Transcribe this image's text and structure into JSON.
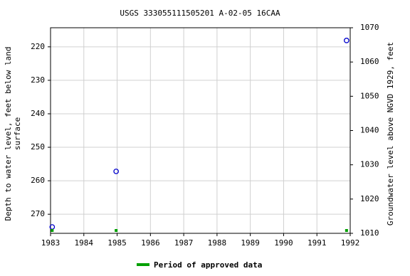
{
  "chart_data": {
    "type": "scatter",
    "title": "USGS 333055111505201 A-02-05 16CAA",
    "ylabel": [
      "Depth to water level, feet below land",
      "surface"
    ],
    "y2label": "Groundwater level above NGVD 1929, feet",
    "xlim": [
      1983,
      1992
    ],
    "xticks": [
      1983,
      1984,
      1985,
      1986,
      1987,
      1988,
      1989,
      1990,
      1991,
      1992
    ],
    "ylim": [
      275.7,
      214.3
    ],
    "yticks": [
      220,
      230,
      240,
      250,
      260,
      270
    ],
    "y2lim": [
      1010,
      1070
    ],
    "y2ticks": [
      1010,
      1020,
      1030,
      1040,
      1050,
      1060,
      1070
    ],
    "grid": true,
    "legend": "bottom",
    "series": [
      {
        "color": "#0000cc",
        "x": [
          1983.05,
          1984.97,
          1991.89
        ],
        "values": [
          273.8,
          257.2,
          218.1
        ]
      },
      {
        "name": "Period of approved data",
        "color": "#00a000",
        "x": [
          1983.05,
          1984.97,
          1991.89
        ]
      }
    ]
  }
}
